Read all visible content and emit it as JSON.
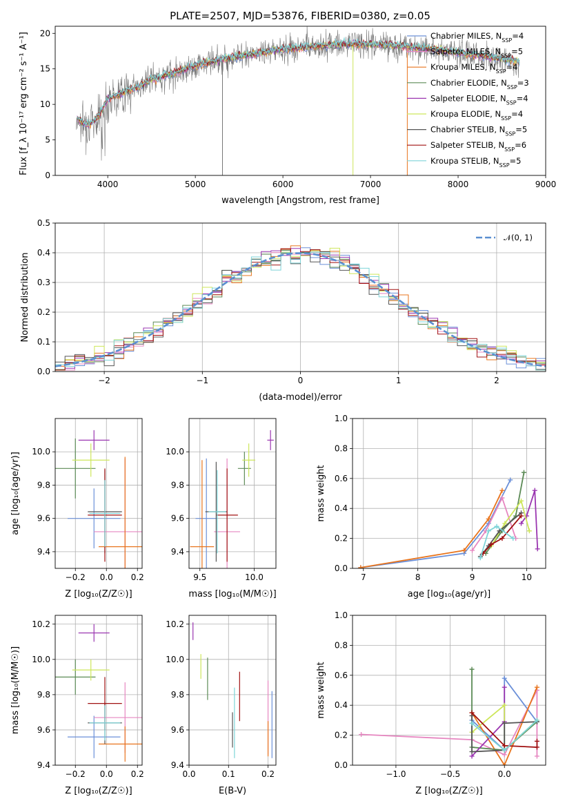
{
  "figure": {
    "title": "PLATE=2507, MJD=53876, FIBERID=0380, z=0.05"
  },
  "colors": {
    "Chabrier MILES": "#6a8fd8",
    "Salpeter MILES": "#e686c0",
    "Kroupa MILES": "#e8741c",
    "Chabrier ELODIE": "#5b8a55",
    "Salpeter ELODIE": "#9a35b0",
    "Kroupa ELODIE": "#cde65a",
    "Chabrier STELIB": "#555555",
    "Salpeter STELIB": "#a01010",
    "Kroupa STELIB": "#7dd4d8",
    "gaussian": "#5a8fd0",
    "grid": "#b0b0b0"
  },
  "chart_data": [
    {
      "id": "spectrum",
      "type": "line",
      "title": "PLATE=2507, MJD=53876, FIBERID=0380, z=0.05",
      "xlabel": "wavelength [Angstrom, rest frame]",
      "ylabel": "Flux [f_λ 10⁻¹⁷ erg cm⁻² s⁻¹ A⁻¹]",
      "xlim": [
        3400,
        9000
      ],
      "ylim": [
        0,
        21
      ],
      "xticks": [
        "4000",
        "5000",
        "6000",
        "7000",
        "8000",
        "9000"
      ],
      "yticks": [
        "0",
        "5",
        "10",
        "15",
        "20"
      ],
      "grid": false,
      "legend_position": "top-right",
      "legend": [
        {
          "label": "Chabrier MILES",
          "nssp": "4"
        },
        {
          "label": "Salpeter MILES",
          "nssp": "5"
        },
        {
          "label": "Kroupa MILES",
          "nssp": "4"
        },
        {
          "label": "Chabrier ELODIE",
          "nssp": "3"
        },
        {
          "label": "Salpeter ELODIE",
          "nssp": "4"
        },
        {
          "label": "Kroupa ELODIE",
          "nssp": "4"
        },
        {
          "label": "Chabrier STELIB",
          "nssp": "5"
        },
        {
          "label": "Salpeter STELIB",
          "nssp": "6"
        },
        {
          "label": "Kroupa STELIB",
          "nssp": "5"
        }
      ],
      "continuum": {
        "x": [
          3650,
          3700,
          3800,
          3900,
          4000,
          4100,
          4200,
          4300,
          4500,
          4700,
          4900,
          5100,
          5300,
          5500,
          5700,
          5900,
          6100,
          6300,
          6500,
          6700,
          6900,
          7100,
          7300,
          7500,
          7700,
          7900,
          8100,
          8300,
          8500,
          8700
        ],
        "y": [
          8,
          7.5,
          7.2,
          8.5,
          10.8,
          11.3,
          11.8,
          12.2,
          13.5,
          14.2,
          15.0,
          15.8,
          16.3,
          16.8,
          17.1,
          17.6,
          17.9,
          18.1,
          18.3,
          18.5,
          18.5,
          18.4,
          18.3,
          18.0,
          17.8,
          17.5,
          17.1,
          16.8,
          16.4,
          16.0
        ]
      }
    },
    {
      "id": "residuals",
      "type": "line",
      "xlabel": "(data-model)/error",
      "ylabel": "Normed distribution",
      "xlim": [
        -2.5,
        2.5
      ],
      "ylim": [
        0,
        0.5
      ],
      "xticks": [
        "−2",
        "−1",
        "0",
        "1",
        "2"
      ],
      "yticks": [
        "0.0",
        "0.1",
        "0.2",
        "0.3",
        "0.4",
        "0.5"
      ],
      "grid": true,
      "legend_position": "top-right",
      "legend": [
        "𝒩(0, 1)"
      ],
      "series": [
        {
          "name": "𝒩(0, 1)",
          "function": "normal",
          "mean": 0,
          "sigma": 1
        }
      ]
    },
    {
      "id": "age_vs_Z",
      "type": "scatter",
      "xlabel": "Z [log₁₀(Z/Z☉)]",
      "ylabel": "age  [log₁₀(age/yr)]",
      "xlim": [
        -0.33,
        0.23
      ],
      "ylim": [
        9.3,
        10.2
      ],
      "xticks": [
        "−0.2",
        "0.0",
        "0.2"
      ],
      "yticks": [
        "9.4",
        "9.6",
        "9.8",
        "10.0"
      ],
      "grid": true,
      "points": [
        {
          "lib": "Chabrier MILES",
          "x": -0.08,
          "y": 9.6,
          "xerr": 0.17,
          "yerr": 0.18
        },
        {
          "lib": "Salpeter MILES",
          "x": 0.12,
          "y": 9.52,
          "xerr": 0.2,
          "yerr": 0.44
        },
        {
          "lib": "Kroupa MILES",
          "x": 0.12,
          "y": 9.43,
          "xerr": 0.17,
          "yerr": 0.54
        },
        {
          "lib": "Chabrier ELODIE",
          "x": -0.2,
          "y": 9.9,
          "xerr": 0.13,
          "yerr": 0.18
        },
        {
          "lib": "Salpeter ELODIE",
          "x": -0.08,
          "y": 10.07,
          "xerr": 0.1,
          "yerr": 0.06
        },
        {
          "lib": "Kroupa ELODIE",
          "x": -0.1,
          "y": 9.95,
          "xerr": 0.12,
          "yerr": 0.1
        },
        {
          "lib": "Chabrier STELIB",
          "x": -0.01,
          "y": 9.64,
          "xerr": 0.11,
          "yerr": 0.25
        },
        {
          "lib": "Salpeter STELIB",
          "x": -0.01,
          "y": 9.62,
          "xerr": 0.11,
          "yerr": 0.28
        },
        {
          "lib": "Kroupa STELIB",
          "x": -0.01,
          "y": 9.63,
          "xerr": 0.1,
          "yerr": 0.2
        }
      ]
    },
    {
      "id": "age_vs_mass",
      "type": "scatter",
      "xlabel": "mass [log₁₀(M/M☉)]",
      "xlim": [
        9.4,
        10.2
      ],
      "ylim": [
        9.3,
        10.2
      ],
      "xticks": [
        "9.5",
        "10.0"
      ],
      "yticks": [
        "9.4",
        "9.6",
        "9.8",
        "10.0"
      ],
      "grid": true,
      "points": [
        {
          "lib": "Chabrier MILES",
          "x": 9.56,
          "y": 9.6,
          "xerr": 0.1,
          "yerr": 0.36
        },
        {
          "lib": "Salpeter MILES",
          "x": 9.75,
          "y": 9.52,
          "xerr": 0.12,
          "yerr": 0.44
        },
        {
          "lib": "Kroupa MILES",
          "x": 9.52,
          "y": 9.43,
          "xerr": 0.11,
          "yerr": 0.52
        },
        {
          "lib": "Chabrier ELODIE",
          "x": 9.91,
          "y": 9.9,
          "xerr": 0.06,
          "yerr": 0.1
        },
        {
          "lib": "Salpeter ELODIE",
          "x": 10.15,
          "y": 10.07,
          "xerr": 0.03,
          "yerr": 0.06
        },
        {
          "lib": "Kroupa ELODIE",
          "x": 9.95,
          "y": 9.95,
          "xerr": 0.06,
          "yerr": 0.1
        },
        {
          "lib": "Chabrier STELIB",
          "x": 9.65,
          "y": 9.64,
          "xerr": 0.1,
          "yerr": 0.3
        },
        {
          "lib": "Salpeter STELIB",
          "x": 9.75,
          "y": 9.62,
          "xerr": 0.1,
          "yerr": 0.28
        },
        {
          "lib": "Kroupa STELIB",
          "x": 9.66,
          "y": 9.64,
          "xerr": 0.08,
          "yerr": 0.25
        }
      ]
    },
    {
      "id": "massweight_vs_age",
      "type": "line",
      "xlabel": "age  [log₁₀(age/yr)]",
      "ylabel": "mass weight",
      "xlim": [
        6.8,
        10.35
      ],
      "ylim": [
        0,
        1.0
      ],
      "xticks": [
        "7",
        "8",
        "9",
        "10"
      ],
      "yticks": [
        "0.0",
        "0.2",
        "0.4",
        "0.6",
        "0.8",
        "1.0"
      ],
      "grid": true,
      "series": [
        {
          "name": "Chabrier MILES",
          "x": [
            6.95,
            8.85,
            9.3,
            9.7
          ],
          "y": [
            0.005,
            0.1,
            0.3,
            0.59
          ]
        },
        {
          "name": "Salpeter MILES",
          "x": [
            9.0,
            9.25,
            9.55,
            9.8
          ],
          "y": [
            0.12,
            0.25,
            0.47,
            0.2
          ]
        },
        {
          "name": "Kroupa MILES",
          "x": [
            6.95,
            8.85,
            9.3,
            9.55
          ],
          "y": [
            0.005,
            0.12,
            0.33,
            0.52
          ]
        },
        {
          "name": "Chabrier ELODIE",
          "x": [
            9.25,
            9.55,
            9.8,
            9.95
          ],
          "y": [
            0.1,
            0.25,
            0.35,
            0.64
          ]
        },
        {
          "name": "Salpeter ELODIE",
          "x": [
            9.9,
            10.0,
            10.15,
            10.2
          ],
          "y": [
            0.3,
            0.35,
            0.52,
            0.13
          ]
        },
        {
          "name": "Kroupa ELODIE",
          "x": [
            9.35,
            9.6,
            9.9,
            10.05
          ],
          "y": [
            0.15,
            0.3,
            0.45,
            0.25
          ]
        },
        {
          "name": "Chabrier STELIB",
          "x": [
            9.15,
            9.3,
            9.5,
            9.9
          ],
          "y": [
            0.08,
            0.15,
            0.25,
            0.37
          ]
        },
        {
          "name": "Salpeter STELIB",
          "x": [
            9.2,
            9.35,
            9.55,
            9.9
          ],
          "y": [
            0.1,
            0.16,
            0.2,
            0.35
          ]
        },
        {
          "name": "Kroupa STELIB",
          "x": [
            9.15,
            9.3,
            9.45,
            9.75
          ],
          "y": [
            0.07,
            0.25,
            0.28,
            0.2
          ]
        }
      ]
    },
    {
      "id": "mass_vs_Z",
      "type": "scatter",
      "xlabel": "Z [log₁₀(Z/Z☉)]",
      "ylabel": "mass [log₁₀(M/M☉)]",
      "xlim": [
        -0.33,
        0.23
      ],
      "ylim": [
        9.4,
        10.25
      ],
      "xticks": [
        "−0.2",
        "0.0",
        "0.2"
      ],
      "yticks": [
        "9.4",
        "9.6",
        "9.8",
        "10.0",
        "10.2"
      ],
      "grid": true,
      "points": [
        {
          "lib": "Chabrier MILES",
          "x": -0.08,
          "y": 9.56,
          "xerr": 0.17,
          "yerr": 0.12
        },
        {
          "lib": "Salpeter MILES",
          "x": 0.12,
          "y": 9.67,
          "xerr": 0.2,
          "yerr": 0.2
        },
        {
          "lib": "Kroupa MILES",
          "x": 0.12,
          "y": 9.52,
          "xerr": 0.17,
          "yerr": 0.1
        },
        {
          "lib": "Chabrier ELODIE",
          "x": -0.2,
          "y": 9.9,
          "xerr": 0.13,
          "yerr": 0.1
        },
        {
          "lib": "Salpeter ELODIE",
          "x": -0.08,
          "y": 10.15,
          "xerr": 0.1,
          "yerr": 0.05
        },
        {
          "lib": "Kroupa ELODIE",
          "x": -0.1,
          "y": 9.94,
          "xerr": 0.12,
          "yerr": 0.06
        },
        {
          "lib": "Chabrier STELIB",
          "x": -0.01,
          "y": 9.64,
          "xerr": 0.11,
          "yerr": 0.12
        },
        {
          "lib": "Salpeter STELIB",
          "x": -0.01,
          "y": 9.75,
          "xerr": 0.11,
          "yerr": 0.15
        },
        {
          "lib": "Kroupa STELIB",
          "x": -0.01,
          "y": 9.64,
          "xerr": 0.1,
          "yerr": 0.1
        }
      ]
    },
    {
      "id": "mass_vs_EBV",
      "type": "scatter",
      "xlabel": "E(B-V)",
      "xlim": [
        0,
        0.22
      ],
      "ylim": [
        9.4,
        10.25
      ],
      "xticks": [
        "0.0",
        "0.1",
        "0.2"
      ],
      "yticks": [
        "9.4",
        "9.6",
        "9.8",
        "10.0",
        "10.2"
      ],
      "grid": true,
      "points": [
        {
          "lib": "Chabrier MILES",
          "x": 0.21,
          "y": 9.63,
          "xerr": 0,
          "yerr": 0.19
        },
        {
          "lib": "Salpeter MILES",
          "x": 0.2,
          "y": 9.67,
          "xerr": 0,
          "yerr": 0.21
        },
        {
          "lib": "Kroupa MILES",
          "x": 0.2,
          "y": 9.55,
          "xerr": 0,
          "yerr": 0.1
        },
        {
          "lib": "Chabrier ELODIE",
          "x": 0.047,
          "y": 9.89,
          "xerr": 0,
          "yerr": 0.12
        },
        {
          "lib": "Salpeter ELODIE",
          "x": 0.01,
          "y": 10.16,
          "xerr": 0,
          "yerr": 0.05
        },
        {
          "lib": "Kroupa ELODIE",
          "x": 0.03,
          "y": 9.96,
          "xerr": 0,
          "yerr": 0.07
        },
        {
          "lib": "Chabrier STELIB",
          "x": 0.11,
          "y": 9.6,
          "xerr": 0,
          "yerr": 0.1
        },
        {
          "lib": "Salpeter STELIB",
          "x": 0.128,
          "y": 9.79,
          "xerr": 0,
          "yerr": 0.14
        },
        {
          "lib": "Kroupa STELIB",
          "x": 0.115,
          "y": 9.64,
          "xerr": 0,
          "yerr": 0.2
        }
      ]
    },
    {
      "id": "massweight_vs_Z",
      "type": "line",
      "xlabel": "Z [log₁₀(Z/Z☉)]",
      "ylabel": "mass weight",
      "xlim": [
        -1.4,
        0.38
      ],
      "ylim": [
        0,
        1.0
      ],
      "xticks": [
        "−1.0",
        "−0.5",
        "0.0"
      ],
      "yticks": [
        "0.0",
        "0.2",
        "0.4",
        "0.6",
        "0.8",
        "1.0"
      ],
      "grid": true,
      "series": [
        {
          "name": "Chabrier MILES",
          "x": [
            -0.3,
            0.0,
            0.0,
            0.3
          ],
          "y": [
            0.3,
            0.1,
            0.58,
            0.29
          ]
        },
        {
          "name": "Salpeter MILES",
          "x": [
            -1.32,
            -0.3,
            0.0,
            0.3,
            0.3
          ],
          "y": [
            0.205,
            0.17,
            0.07,
            0.5,
            0.06
          ]
        },
        {
          "name": "Kroupa MILES",
          "x": [
            -0.3,
            0.0,
            0.3
          ],
          "y": [
            0.35,
            0.0,
            0.52
          ]
        },
        {
          "name": "Chabrier ELODIE",
          "x": [
            -0.3,
            -0.3,
            0.0,
            0.3
          ],
          "y": [
            0.64,
            0.12,
            0.1,
            0.29
          ]
        },
        {
          "name": "Salpeter ELODIE",
          "x": [
            -0.3,
            0.0,
            0.0
          ],
          "y": [
            0.06,
            0.29,
            0.52
          ]
        },
        {
          "name": "Kroupa ELODIE",
          "x": [
            -0.3,
            0.0,
            0.0,
            0.3
          ],
          "y": [
            0.22,
            0.4,
            0.1,
            0.3
          ]
        },
        {
          "name": "Chabrier STELIB",
          "x": [
            -0.3,
            -0.3,
            0.0,
            0.0,
            0.3
          ],
          "y": [
            0.33,
            0.09,
            0.1,
            0.28,
            0.29
          ]
        },
        {
          "name": "Salpeter STELIB",
          "x": [
            -0.3,
            0.0,
            0.3,
            0.3
          ],
          "y": [
            0.35,
            0.13,
            0.12,
            0.16
          ]
        },
        {
          "name": "Kroupa STELIB",
          "x": [
            -0.3,
            0.0,
            0.3
          ],
          "y": [
            0.28,
            0.1,
            0.3
          ]
        }
      ]
    }
  ]
}
